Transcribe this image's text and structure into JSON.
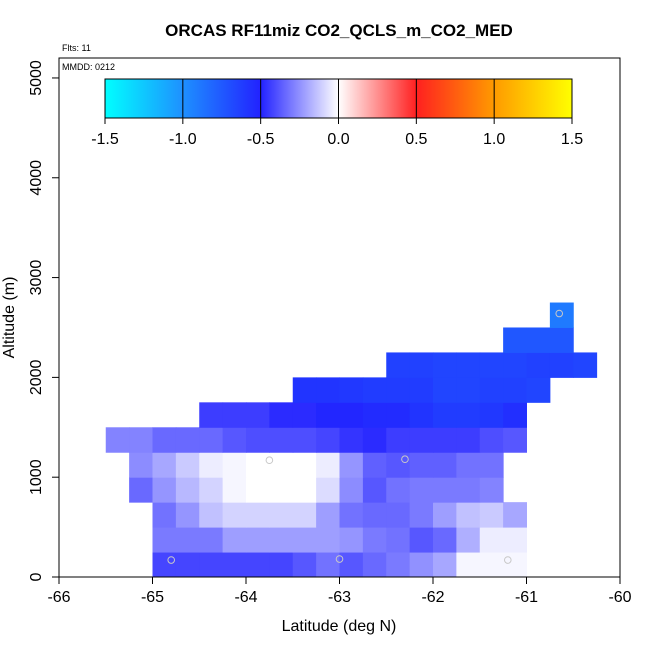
{
  "chart_data": {
    "type": "heatmap",
    "title": "ORCAS RF11miz CO2_QCLS_m_CO2_MED",
    "annotations": {
      "flights": "Flts: 11",
      "date": "MMDD: 0212"
    },
    "xlabel": "Latitude (deg N)",
    "ylabel": "Altitude (m)",
    "xlim": [
      -66,
      -60
    ],
    "ylim": [
      0,
      5200
    ],
    "x_ticks": [
      -66,
      -65,
      -64,
      -63,
      -62,
      -61,
      -60
    ],
    "y_ticks": [
      0,
      1000,
      2000,
      3000,
      4000,
      5000
    ],
    "colorbar": {
      "range": [
        -1.5,
        1.5
      ],
      "ticks": [
        -1.5,
        -1.0,
        -0.5,
        0.0,
        0.5,
        1.0,
        1.5
      ],
      "tick_labels": [
        "-1.5",
        "-1.0",
        "-0.5",
        "0.0",
        "0.5",
        "1.0",
        "1.5"
      ],
      "stops": [
        {
          "value": -1.5,
          "color": "#00ffff"
        },
        {
          "value": -1.0,
          "color": "#1e90ff"
        },
        {
          "value": -0.5,
          "color": "#2222ff"
        },
        {
          "value": 0.0,
          "color": "#ffffff"
        },
        {
          "value": 0.5,
          "color": "#ff2020"
        },
        {
          "value": 1.0,
          "color": "#ff9a00"
        },
        {
          "value": 1.5,
          "color": "#ffff00"
        }
      ]
    },
    "cell_size": {
      "lat": 0.25,
      "alt": 250
    },
    "rows": [
      {
        "alt": 0,
        "lat_start": -65.0,
        "values": [
          -0.42,
          -0.42,
          -0.42,
          -0.42,
          -0.42,
          -0.42,
          -0.38,
          -0.32,
          -0.38,
          -0.34,
          -0.3,
          -0.25,
          -0.2,
          -0.02,
          -0.02,
          -0.02
        ]
      },
      {
        "alt": 250,
        "lat_start": -65.0,
        "values": [
          -0.3,
          -0.3,
          -0.3,
          -0.22,
          -0.22,
          -0.22,
          -0.22,
          -0.22,
          -0.24,
          -0.3,
          -0.32,
          -0.38,
          -0.34,
          -0.18,
          -0.04,
          -0.04
        ]
      },
      {
        "alt": 500,
        "lat_start": -65.0,
        "values": [
          -0.32,
          -0.24,
          -0.14,
          -0.1,
          -0.1,
          -0.1,
          -0.1,
          -0.22,
          -0.32,
          -0.34,
          -0.34,
          -0.3,
          -0.22,
          -0.14,
          -0.12,
          -0.2
        ]
      },
      {
        "alt": 750,
        "lat_start": -65.25,
        "values": [
          -0.34,
          -0.24,
          -0.16,
          -0.1,
          -0.02,
          0.0,
          0.0,
          0.0,
          -0.08,
          -0.26,
          -0.38,
          -0.32,
          -0.3,
          -0.3,
          -0.3,
          -0.28
        ]
      },
      {
        "alt": 1000,
        "lat_start": -65.25,
        "values": [
          -0.26,
          -0.2,
          -0.12,
          -0.04,
          -0.02,
          0.0,
          0.0,
          0.0,
          -0.04,
          -0.24,
          -0.36,
          -0.38,
          -0.36,
          -0.36,
          -0.32,
          -0.32
        ]
      },
      {
        "alt": 1250,
        "lat_start": -65.5,
        "values": [
          -0.28,
          -0.28,
          -0.34,
          -0.34,
          -0.34,
          -0.38,
          -0.4,
          -0.4,
          -0.4,
          -0.42,
          -0.46,
          -0.48,
          -0.44,
          -0.44,
          -0.44,
          -0.44,
          -0.4,
          -0.38
        ]
      },
      {
        "alt": 1500,
        "lat_start": -64.5,
        "values": [
          -0.44,
          -0.44,
          -0.44,
          -0.48,
          -0.48,
          -0.52,
          -0.52,
          -0.54,
          -0.54,
          -0.58,
          -0.62,
          -0.62,
          -0.6,
          -0.56
        ]
      },
      {
        "alt": 1750,
        "lat_start": -63.5,
        "values": [
          -0.58,
          -0.58,
          -0.6,
          -0.62,
          -0.62,
          -0.62,
          -0.66,
          -0.66,
          -0.64,
          -0.64,
          -0.66
        ]
      },
      {
        "alt": 2000,
        "lat_start": -62.5,
        "values": [
          -0.64,
          -0.64,
          -0.66,
          -0.66,
          -0.66,
          -0.66,
          -0.64,
          -0.64,
          -0.66
        ]
      },
      {
        "alt": 2250,
        "lat_start": -61.25,
        "values": [
          -0.74,
          -0.74,
          -0.74
        ]
      },
      {
        "alt": 2500,
        "lat_start": -60.75,
        "values": [
          -0.9
        ]
      }
    ],
    "markers": [
      {
        "lat": -64.8,
        "alt": 170
      },
      {
        "lat": -63.75,
        "alt": 1170
      },
      {
        "lat": -63.0,
        "alt": 180
      },
      {
        "lat": -62.3,
        "alt": 1180
      },
      {
        "lat": -61.2,
        "alt": 170
      },
      {
        "lat": -60.65,
        "alt": 2640
      }
    ]
  }
}
